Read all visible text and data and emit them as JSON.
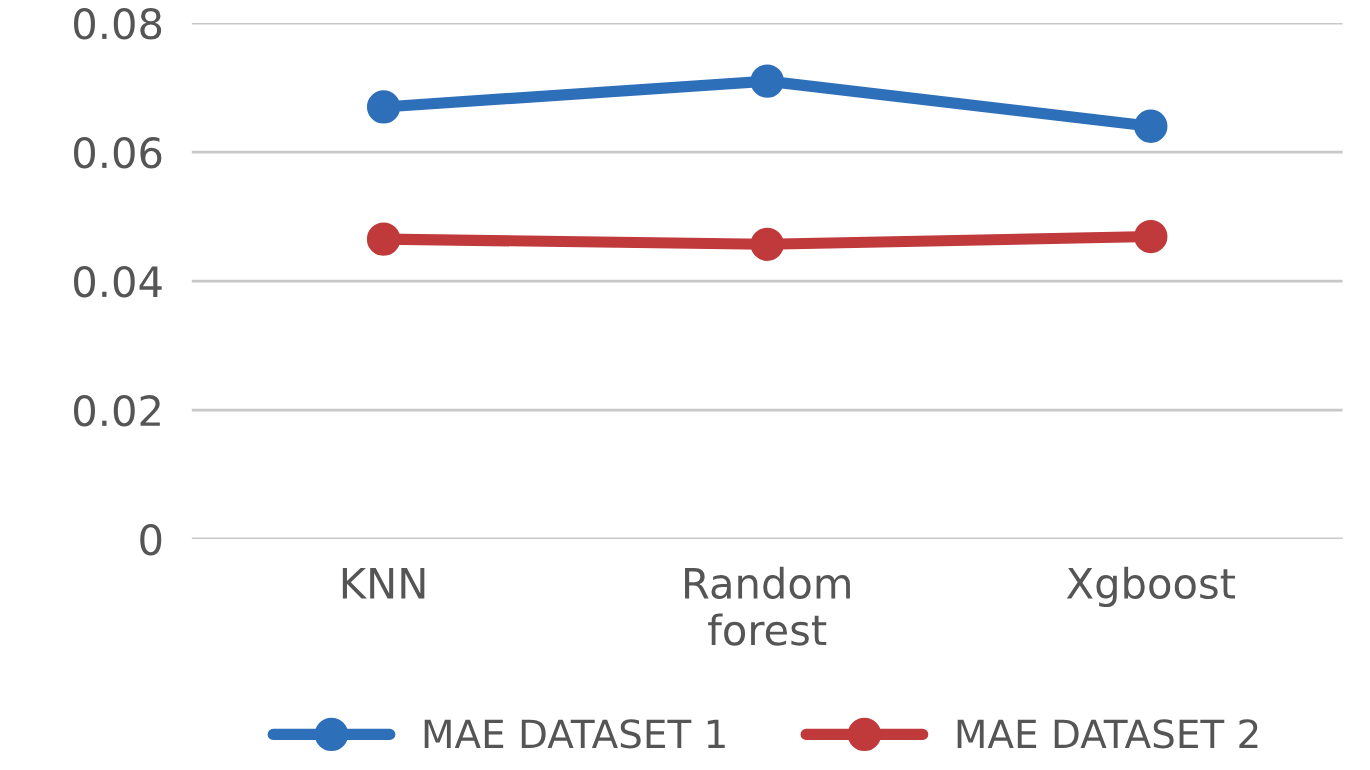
{
  "chart_data": {
    "type": "line",
    "categories": [
      "KNN",
      "Random\nforest",
      "Xgboost"
    ],
    "series": [
      {
        "name": "MAE DATASET 1",
        "color": "#2e6fba",
        "values": [
          0.067,
          0.071,
          0.064
        ]
      },
      {
        "name": "MAE DATASET 2",
        "color": "#c0393b",
        "values": [
          0.0465,
          0.0457,
          0.0469
        ]
      }
    ],
    "ylim": [
      0,
      0.08
    ],
    "yticks": [
      {
        "value": 0,
        "label": "0"
      },
      0.02,
      0.04,
      0.06,
      0.08
    ],
    "grid": "y",
    "legend": "bottom",
    "marker": "circle",
    "line_style": "solid"
  }
}
